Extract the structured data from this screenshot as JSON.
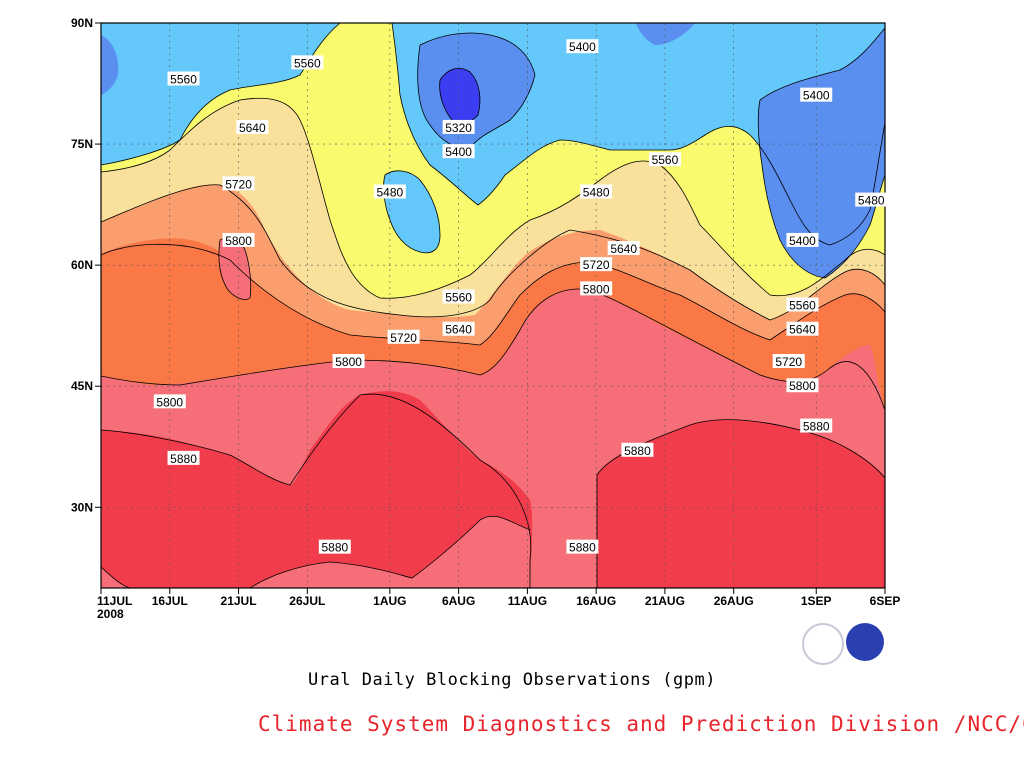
{
  "colors": {
    "lt5360": "#3c3cf0",
    "5400_5360": "#5a8ff0",
    "5480": "#64c8fa",
    "5560": "#fafa6e",
    "5640": "#fae19b",
    "5720": "#fa9e6e",
    "5800": "#fa7846",
    "5880": "#f56e78",
    "gt5880": "#f03c4b",
    "credit": "#e8242c"
  },
  "chart_data": {
    "type": "contour",
    "subtitle": "Ural Daily Blocking Observations (gpm)",
    "credit": "Climate System Diagnostics and Prediction Division /NCC/CMA",
    "x_ticks": [
      "11JUL",
      "16JUL",
      "21JUL",
      "26JUL",
      "1AUG",
      "6AUG",
      "11AUG",
      "16AUG",
      "21AUG",
      "26AUG",
      "1SEP",
      "6SEP"
    ],
    "x_year": "2008",
    "y_ticks": [
      "90N",
      "75N",
      "60N",
      "45N",
      "30N"
    ],
    "x_range": [
      "2008-07-11",
      "2008-09-06"
    ],
    "y_range": [
      20,
      90
    ],
    "grid": true,
    "contour_levels": [
      5320,
      5400,
      5480,
      5560,
      5640,
      5720,
      5800,
      5880
    ],
    "contour_labels": [
      {
        "value": "5560",
        "date": "2008-07-17",
        "lat": 83
      },
      {
        "value": "5560",
        "date": "2008-07-26",
        "lat": 85
      },
      {
        "value": "5640",
        "date": "2008-07-22",
        "lat": 77
      },
      {
        "value": "5720",
        "date": "2008-07-21",
        "lat": 70
      },
      {
        "value": "5800",
        "date": "2008-07-21",
        "lat": 63
      },
      {
        "value": "5480",
        "date": "2008-08-01",
        "lat": 69
      },
      {
        "value": "5400",
        "date": "2008-08-15",
        "lat": 87
      },
      {
        "value": "5320",
        "date": "2008-08-06",
        "lat": 77
      },
      {
        "value": "5400",
        "date": "2008-08-06",
        "lat": 74
      },
      {
        "value": "5480",
        "date": "2008-08-16",
        "lat": 69
      },
      {
        "value": "5560",
        "date": "2008-08-21",
        "lat": 73
      },
      {
        "value": "5640",
        "date": "2008-08-18",
        "lat": 62
      },
      {
        "value": "5720",
        "date": "2008-08-16",
        "lat": 60
      },
      {
        "value": "5800",
        "date": "2008-08-16",
        "lat": 57
      },
      {
        "value": "5560",
        "date": "2008-08-06",
        "lat": 56
      },
      {
        "value": "5640",
        "date": "2008-08-06",
        "lat": 52
      },
      {
        "value": "5720",
        "date": "2008-08-02",
        "lat": 51
      },
      {
        "value": "5800",
        "date": "2008-07-29",
        "lat": 48
      },
      {
        "value": "5800",
        "date": "2008-07-16",
        "lat": 43
      },
      {
        "value": "5880",
        "date": "2008-07-17",
        "lat": 36
      },
      {
        "value": "5880",
        "date": "2008-07-28",
        "lat": 25
      },
      {
        "value": "5880",
        "date": "2008-08-15",
        "lat": 25
      },
      {
        "value": "5880",
        "date": "2008-08-19",
        "lat": 37
      },
      {
        "value": "5400",
        "date": "2008-09-01",
        "lat": 81
      },
      {
        "value": "5480",
        "date": "2008-09-05",
        "lat": 68
      },
      {
        "value": "5400",
        "date": "2008-08-31",
        "lat": 63
      },
      {
        "value": "5560",
        "date": "2008-08-31",
        "lat": 55
      },
      {
        "value": "5640",
        "date": "2008-08-31",
        "lat": 52
      },
      {
        "value": "5720",
        "date": "2008-08-30",
        "lat": 48
      },
      {
        "value": "5800",
        "date": "2008-08-31",
        "lat": 45
      },
      {
        "value": "5880",
        "date": "2008-09-01",
        "lat": 40
      }
    ]
  }
}
